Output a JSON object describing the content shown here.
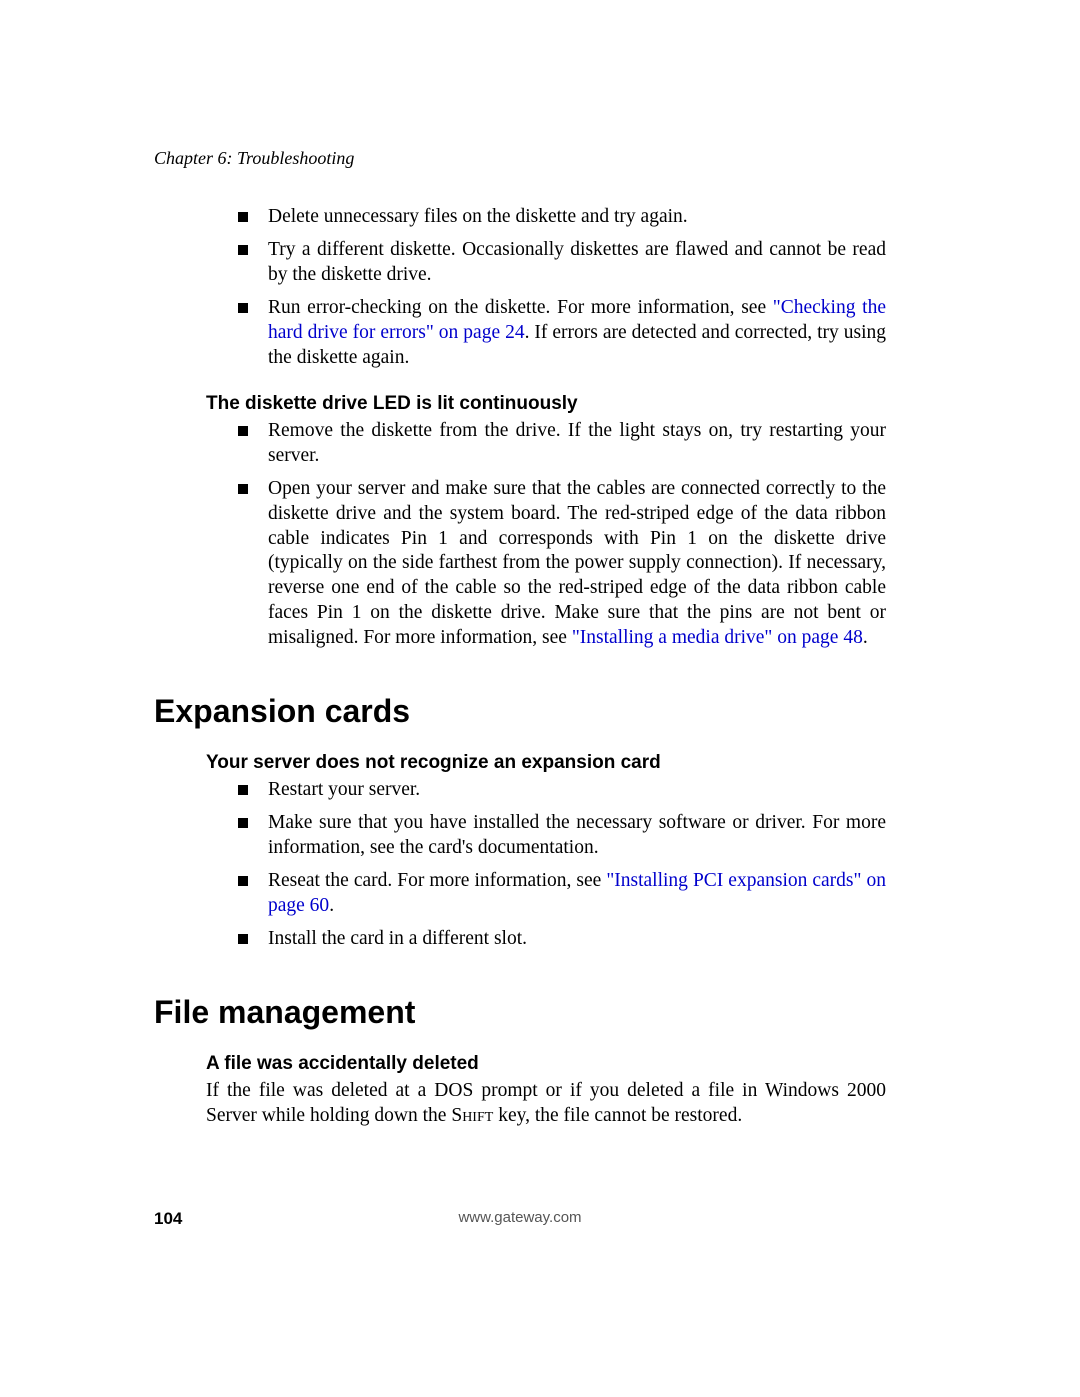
{
  "header": {
    "chapter_line": "Chapter 6: Troubleshooting"
  },
  "top_bullets": [
    {
      "pre": "Delete unnecessary files on the diskette and try again.",
      "link": "",
      "post": ""
    },
    {
      "pre": "Try a different diskette. Occasionally diskettes are flawed and cannot be read by the diskette drive.",
      "link": "",
      "post": ""
    },
    {
      "pre": "Run error-checking on the diskette. For more information, see ",
      "link": "\"Checking the hard drive for errors\" on page 24",
      "post": ". If errors are detected and corrected, try using the diskette again."
    }
  ],
  "diskette_led": {
    "heading": "The diskette drive LED is lit continuously",
    "bullets": [
      {
        "pre": "Remove the diskette from the drive. If the light stays on, try restarting your server.",
        "link": "",
        "post": ""
      },
      {
        "pre": "Open your server and make sure that the cables are connected correctly to the diskette drive and the system board. The red-striped edge of the data ribbon cable indicates Pin 1 and corresponds with Pin 1 on the diskette drive (typically on the side farthest from the power supply connection). If necessary, reverse one end of the cable so the red-striped edge of the data ribbon cable faces Pin 1 on the diskette drive. Make sure that the pins are not bent or misaligned. For more information, see ",
        "link": "\"Installing a media drive\" on page 48",
        "post": "."
      }
    ]
  },
  "expansion": {
    "heading": "Expansion cards",
    "sub_heading": "Your server does not recognize an expansion card",
    "bullets": [
      {
        "pre": "Restart your server.",
        "link": "",
        "post": ""
      },
      {
        "pre": "Make sure that you have installed the necessary software or driver. For more information, see the card's documentation.",
        "link": "",
        "post": ""
      },
      {
        "pre": "Reseat the card. For more information, see ",
        "link": "\"Installing PCI expansion cards\" on page 60",
        "post": "."
      },
      {
        "pre": "Install the card in a different slot.",
        "link": "",
        "post": ""
      }
    ]
  },
  "filemgmt": {
    "heading": "File management",
    "sub_heading": "A file was accidentally deleted",
    "para_pre": "If the file was deleted at a DOS prompt or if you deleted a file in Windows 2000 Server while holding down the ",
    "para_key": "Shift",
    "para_post": " key, the file cannot be restored."
  },
  "footer": {
    "page_number": "104",
    "url": "www.gateway.com"
  },
  "colors": {
    "link_color": "#0000cc",
    "text_color": "#000000",
    "footer_url_color": "#555555",
    "background": "#ffffff"
  },
  "typography": {
    "body_font": "Palatino Linotype",
    "heading_font": "Arial",
    "body_size_pt": 14,
    "section_heading_size_pt": 24,
    "sub_heading_size_pt": 14
  }
}
